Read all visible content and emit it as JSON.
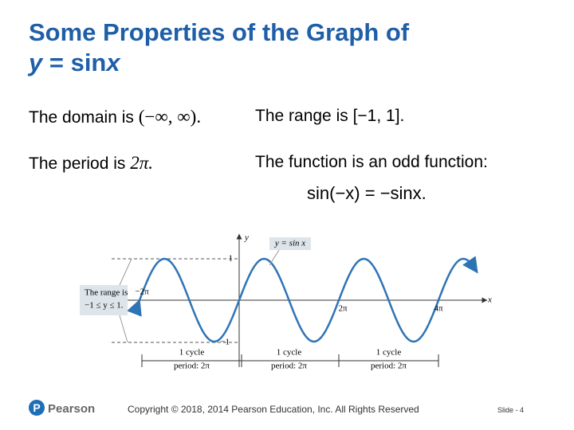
{
  "title": {
    "line1": "Some Properties of the Graph of",
    "line2": [
      "y",
      " = sin",
      "x"
    ]
  },
  "properties": {
    "domain": {
      "text": "The domain is",
      "math": "(−∞, ∞)."
    },
    "range": {
      "text": "The range is [−1, 1]."
    },
    "period": {
      "text": "The period is",
      "math": "2π."
    },
    "odd": {
      "text": "The function is an odd function:",
      "math": "sin(−x) = −sinx."
    }
  },
  "figure": {
    "y_axis": "y",
    "x_axis": "x",
    "ticks": [
      "1",
      "−1",
      "−2π",
      "2π",
      "4π"
    ],
    "curve_label": "y = sin x",
    "range_note": [
      "The range is",
      "−1 ≤ y ≤ 1."
    ],
    "cycles": [
      {
        "label": "1 cycle",
        "period": "period: 2π"
      },
      {
        "label": "1 cycle",
        "period": "period: 2π"
      },
      {
        "label": "1 cycle",
        "period": "period: 2π"
      }
    ]
  },
  "footer": {
    "brand": "Pearson",
    "copyright": "Copyright © 2018, 2014 Pearson Education, Inc. All Rights Reserved",
    "slide": "Slide - 4"
  }
}
